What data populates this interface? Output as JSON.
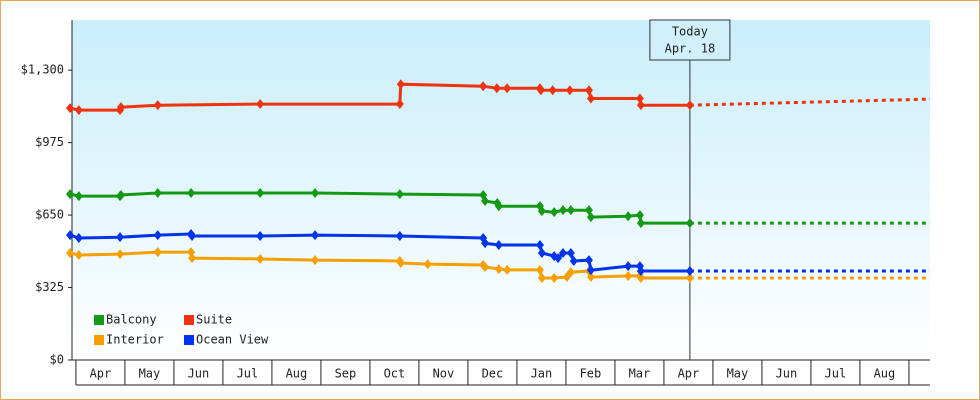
{
  "chart_data": {
    "type": "line",
    "xlim": [
      -0.08,
      17.43
    ],
    "xticks": [
      {
        "value": 0.5,
        "label": "Apr"
      },
      {
        "value": 1.5,
        "label": "May"
      },
      {
        "value": 2.5,
        "label": "Jun"
      },
      {
        "value": 3.5,
        "label": "Jul"
      },
      {
        "value": 4.5,
        "label": "Aug"
      },
      {
        "value": 5.5,
        "label": "Sep"
      },
      {
        "value": 6.5,
        "label": "Oct"
      },
      {
        "value": 7.5,
        "label": "Nov"
      },
      {
        "value": 8.5,
        "label": "Dec"
      },
      {
        "value": 9.5,
        "label": "Jan"
      },
      {
        "value": 10.5,
        "label": "Feb"
      },
      {
        "value": 11.5,
        "label": "Mar"
      },
      {
        "value": 12.5,
        "label": "Apr"
      },
      {
        "value": 13.5,
        "label": "May"
      },
      {
        "value": 14.5,
        "label": "Jun"
      },
      {
        "value": 15.5,
        "label": "Jul"
      },
      {
        "value": 16.5,
        "label": "Aug"
      }
    ],
    "ylim": [
      0,
      1525
    ],
    "yticks": [
      {
        "value": 0,
        "label": "$0"
      },
      {
        "value": 325,
        "label": "$325"
      },
      {
        "value": 650,
        "label": "$650"
      },
      {
        "value": 975,
        "label": "$975"
      },
      {
        "value": 1300,
        "label": "$1,300"
      }
    ],
    "grid": false,
    "legend": "lower left",
    "today": {
      "x": 12.53,
      "lines": [
        "Today",
        "Apr. 18"
      ]
    },
    "forecast_x": [
      12.53,
      17.43
    ],
    "series": [
      {
        "name": "Balcony",
        "color": "#149914",
        "x": [
          -0.12,
          0.06,
          0.9,
          0.92,
          1.67,
          2.35,
          3.76,
          4.88,
          6.61,
          8.31,
          8.35,
          8.6,
          8.63,
          9.47,
          9.51,
          9.76,
          9.94,
          10.1,
          10.47,
          10.51,
          11.27,
          11.51,
          11.53,
          12.53
        ],
        "values": [
          744,
          735,
          735,
          740,
          749,
          749,
          749,
          749,
          744,
          740,
          713,
          704,
          690,
          690,
          668,
          663,
          672,
          672,
          672,
          641,
          645,
          650,
          614,
          614
        ],
        "forecast": [
          614,
          614
        ]
      },
      {
        "name": "Suite",
        "color": "#ee3311",
        "x": [
          -0.12,
          0.06,
          0.9,
          0.92,
          1.67,
          3.76,
          6.61,
          6.63,
          8.31,
          8.59,
          8.8,
          9.47,
          9.49,
          9.73,
          10.08,
          10.47,
          10.51,
          11.51,
          11.53,
          12.53
        ],
        "values": [
          1130,
          1121,
          1121,
          1134,
          1143,
          1148,
          1148,
          1237,
          1228,
          1219,
          1219,
          1219,
          1210,
          1210,
          1210,
          1210,
          1173,
          1173,
          1143,
          1143
        ],
        "forecast": [
          1143,
          1170
        ]
      },
      {
        "name": "Interior",
        "color": "#f5a000",
        "x": [
          -0.12,
          0.06,
          0.9,
          1.67,
          2.35,
          2.37,
          3.76,
          4.88,
          6.61,
          6.63,
          7.18,
          8.31,
          8.35,
          8.63,
          8.8,
          9.47,
          9.51,
          9.76,
          10.02,
          10.1,
          10.47,
          10.51,
          11.27,
          11.51,
          11.53,
          12.53
        ],
        "values": [
          480,
          471,
          475,
          484,
          484,
          457,
          453,
          448,
          444,
          435,
          430,
          426,
          417,
          408,
          404,
          404,
          368,
          368,
          372,
          394,
          399,
          372,
          377,
          377,
          368,
          368
        ],
        "forecast": [
          368,
          368
        ]
      },
      {
        "name": "Ocean View",
        "color": "#0033ee",
        "x": [
          -0.12,
          0.06,
          0.9,
          1.67,
          2.35,
          2.37,
          3.76,
          4.88,
          6.61,
          8.31,
          8.35,
          8.63,
          9.47,
          9.51,
          9.76,
          9.84,
          9.94,
          10.1,
          10.16,
          10.47,
          10.51,
          11.27,
          11.51,
          11.53,
          12.53
        ],
        "values": [
          560,
          547,
          551,
          560,
          565,
          556,
          556,
          560,
          556,
          547,
          524,
          516,
          516,
          480,
          466,
          457,
          480,
          480,
          444,
          448,
          403,
          421,
          421,
          399,
          399
        ],
        "forecast": [
          399,
          399
        ]
      }
    ]
  }
}
